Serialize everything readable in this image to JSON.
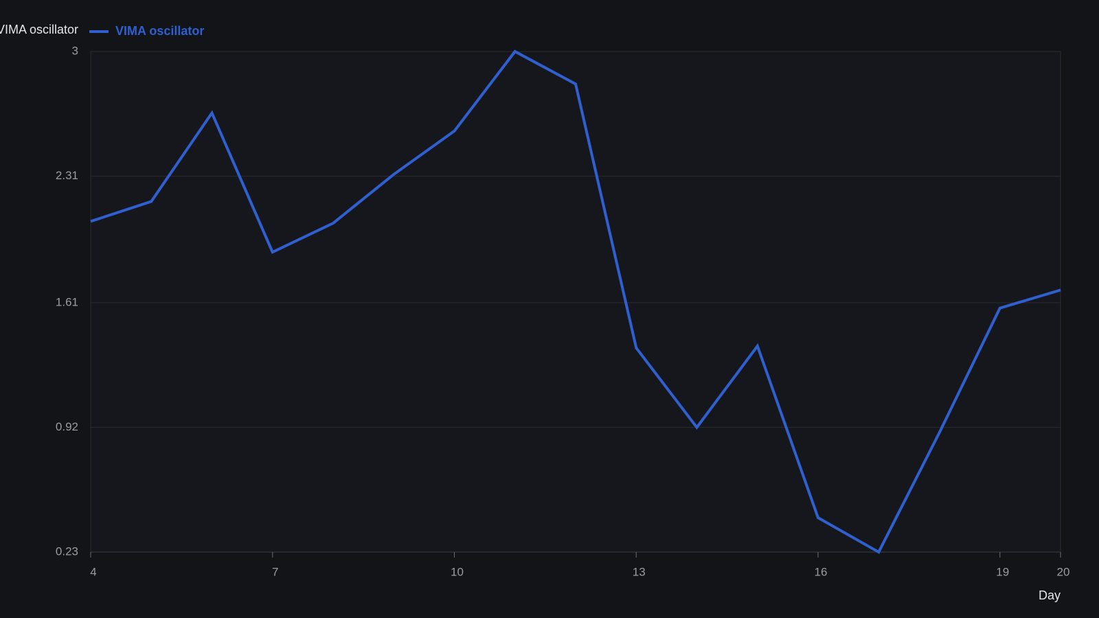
{
  "chart_data": {
    "type": "line",
    "y_label": "VIMA oscillator",
    "x_label": "Day",
    "x": [
      4,
      5,
      6,
      7,
      8,
      9,
      10,
      11,
      12,
      13,
      14,
      15,
      16,
      17,
      18,
      19,
      20
    ],
    "series": [
      {
        "name": "VIMA oscillator",
        "color": "#3060d0",
        "values": [
          2.06,
          2.17,
          2.66,
          1.89,
          2.05,
          2.32,
          2.56,
          3.0,
          2.82,
          1.36,
          0.92,
          1.37,
          0.42,
          0.23,
          0.89,
          1.58,
          1.68
        ]
      }
    ],
    "xlim": [
      4,
      20
    ],
    "xticks": [
      4,
      7,
      10,
      13,
      16,
      19,
      20
    ],
    "ylim": [
      0.23,
      3
    ],
    "yticks": [
      0.23,
      0.92,
      1.61,
      2.31,
      3
    ],
    "grid": true,
    "legend": "top-left"
  }
}
